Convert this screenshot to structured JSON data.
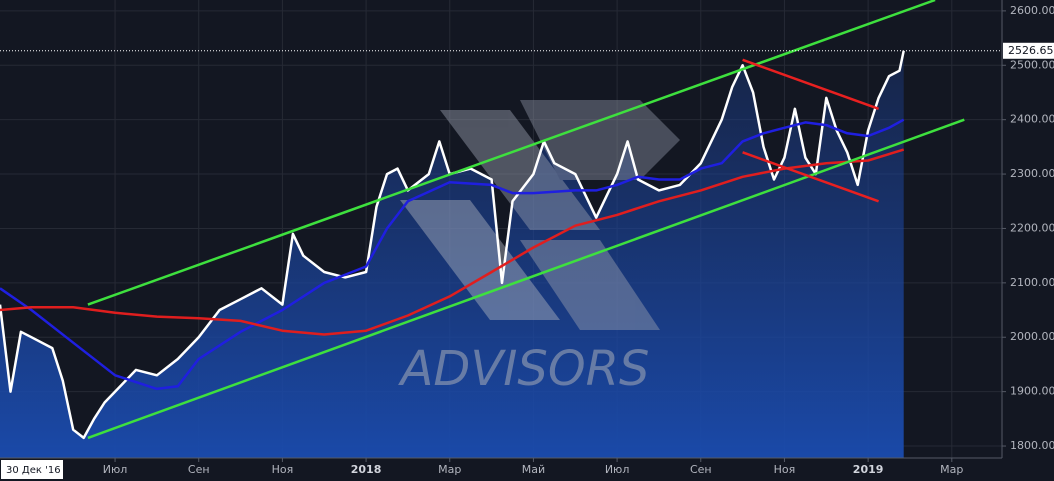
{
  "chart_data": {
    "type": "line",
    "watermark": "ADVISORS",
    "crosshair_label": "30 Дек '16",
    "price_label": "2526.65",
    "xlim": [
      3.25,
      27.2
    ],
    "ylim": [
      1778,
      2620
    ],
    "grid": true,
    "xticks": [
      {
        "value": 6,
        "label": "Июл"
      },
      {
        "value": 8,
        "label": "Сен"
      },
      {
        "value": 10,
        "label": "Ноя"
      },
      {
        "value": 12,
        "label": "2018"
      },
      {
        "value": 14,
        "label": "Мар"
      },
      {
        "value": 16,
        "label": "Май"
      },
      {
        "value": 18,
        "label": "Июл"
      },
      {
        "value": 20,
        "label": "Сен"
      },
      {
        "value": 22,
        "label": "Ноя"
      },
      {
        "value": 24,
        "label": "2019"
      },
      {
        "value": 26,
        "label": "Мар"
      }
    ],
    "yticks": [
      {
        "value": 1800,
        "label": "1800.00"
      },
      {
        "value": 1900,
        "label": "1900.00"
      },
      {
        "value": 2000,
        "label": "2000.00"
      },
      {
        "value": 2100,
        "label": "2100.00"
      },
      {
        "value": 2200,
        "label": "2200.00"
      },
      {
        "value": 2300,
        "label": "2300.00"
      },
      {
        "value": 2400,
        "label": "2400.00"
      },
      {
        "value": 2500,
        "label": "2500.00"
      },
      {
        "value": 2600,
        "label": "2600.00"
      }
    ],
    "series": [
      {
        "color": "#ffffff",
        "area": true,
        "x": [
          3.25,
          3.5,
          3.75,
          4.0,
          4.5,
          4.75,
          5.0,
          5.25,
          5.5,
          5.75,
          6.0,
          6.5,
          7.0,
          7.5,
          8.0,
          8.5,
          9.0,
          9.5,
          10.0,
          10.25,
          10.5,
          11.0,
          11.5,
          12.0,
          12.25,
          12.5,
          12.75,
          13.0,
          13.5,
          13.75,
          14.0,
          14.5,
          15.0,
          15.25,
          15.5,
          16.0,
          16.25,
          16.5,
          17.0,
          17.5,
          18.0,
          18.25,
          18.5,
          19.0,
          19.5,
          20.0,
          20.5,
          20.75,
          21.0,
          21.25,
          21.5,
          21.75,
          22.0,
          22.25,
          22.5,
          22.75,
          23.0,
          23.25,
          23.5,
          23.75,
          24.0,
          24.25,
          24.5,
          24.75,
          24.85
        ],
        "values": [
          2060,
          1900,
          2010,
          2000,
          1980,
          1920,
          1830,
          1815,
          1850,
          1880,
          1900,
          1940,
          1930,
          1960,
          2000,
          2050,
          2070,
          2090,
          2060,
          2190,
          2150,
          2120,
          2110,
          2120,
          2240,
          2300,
          2310,
          2270,
          2300,
          2360,
          2300,
          2310,
          2290,
          2100,
          2250,
          2300,
          2360,
          2320,
          2300,
          2220,
          2300,
          2360,
          2290,
          2270,
          2280,
          2320,
          2400,
          2460,
          2500,
          2450,
          2350,
          2290,
          2330,
          2420,
          2330,
          2300,
          2440,
          2380,
          2340,
          2280,
          2380,
          2440,
          2480,
          2490,
          2526.65
        ]
      },
      {
        "color": "#1f1fe0",
        "x": [
          3.25,
          4.0,
          5.0,
          6.0,
          7.0,
          7.5,
          8.0,
          9.0,
          10.0,
          11.0,
          12.0,
          12.5,
          13.0,
          14.0,
          15.0,
          15.5,
          16.0,
          17.0,
          17.5,
          18.0,
          18.5,
          19.0,
          19.5,
          20.0,
          20.5,
          21.0,
          21.5,
          22.0,
          22.5,
          23.0,
          23.5,
          24.0,
          24.5,
          24.85
        ],
        "values": [
          2090,
          2050,
          1990,
          1930,
          1905,
          1910,
          1960,
          2010,
          2050,
          2100,
          2130,
          2200,
          2250,
          2285,
          2280,
          2265,
          2265,
          2270,
          2270,
          2280,
          2295,
          2290,
          2290,
          2310,
          2320,
          2360,
          2375,
          2385,
          2395,
          2390,
          2375,
          2370,
          2385,
          2400
        ]
      },
      {
        "color": "#e01e1e",
        "x": [
          3.25,
          4.0,
          5.0,
          6.0,
          7.0,
          8.0,
          9.0,
          10.0,
          11.0,
          12.0,
          13.0,
          14.0,
          15.0,
          16.0,
          17.0,
          18.0,
          19.0,
          20.0,
          21.0,
          22.0,
          23.0,
          24.0,
          24.85
        ],
        "values": [
          2050,
          2055,
          2055,
          2045,
          2038,
          2035,
          2030,
          2012,
          2005,
          2012,
          2040,
          2075,
          2120,
          2165,
          2205,
          2225,
          2250,
          2270,
          2295,
          2310,
          2320,
          2325,
          2345
        ]
      },
      {
        "color": "#3ee03e",
        "x": [
          5.35,
          25.6
        ],
        "values": [
          2060,
          2620
        ]
      },
      {
        "color": "#3ee03e",
        "x": [
          5.35,
          26.3
        ],
        "values": [
          1815,
          2400
        ]
      },
      {
        "color": "#e82020",
        "x": [
          21.0,
          24.25
        ],
        "values": [
          2510,
          2420
        ]
      },
      {
        "color": "#e82020",
        "x": [
          21.0,
          24.25
        ],
        "values": [
          2340,
          2250
        ]
      }
    ]
  }
}
